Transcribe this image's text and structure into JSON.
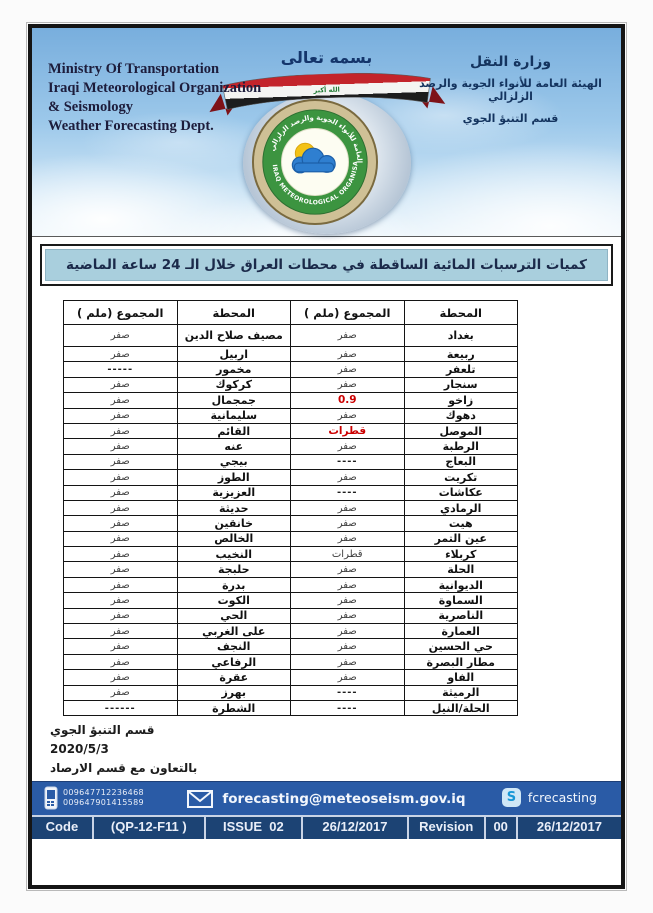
{
  "header": {
    "bismillah": "بسمه تعالى",
    "english_lines": [
      "Ministry Of Transportation",
      "Iraqi Meteorological Organization",
      "& Seismology",
      "Weather Forecasting Dept."
    ],
    "arabic_lines": [
      "وزارة النقل",
      "الهيئة العامة للأنواء الجوية والرصد الزلزالي",
      "قسم التنبؤ الجوي"
    ],
    "flag_text": "الله أكبر",
    "logo_ring_top": "الهيئة العامة للأنواء الجوية والرصد الزلزالي",
    "logo_ring_bottom": "IRAQ METEOROLOGICAL ORGANISATION & SEISMOLOGY"
  },
  "title": "كميات الترسبات المائية الساقطة في محطات العراق خلال الـ 24 ساعة الماضية",
  "table": {
    "headers": [
      "المحطة",
      "المجموع (ملم )",
      "المحطة",
      "المجموع (ملم )"
    ],
    "rows": [
      {
        "r": {
          "station": "بغداد",
          "value": "صفر"
        },
        "l": {
          "station": "مصيف صلاح الدين",
          "value": "صفر"
        }
      },
      {
        "r": {
          "station": "ربيعة",
          "value": "صفر"
        },
        "l": {
          "station": "اربيل",
          "value": "صفر"
        }
      },
      {
        "r": {
          "station": "تلعفر",
          "value": "صفر"
        },
        "l": {
          "station": "مخمور",
          "value": "-----"
        }
      },
      {
        "r": {
          "station": "سنجار",
          "value": "صفر"
        },
        "l": {
          "station": "كركوك",
          "value": "صفر"
        }
      },
      {
        "r": {
          "station": "زاخو",
          "value": "0.9",
          "highlight": true
        },
        "l": {
          "station": "جمجمال",
          "value": "صفر"
        }
      },
      {
        "r": {
          "station": "دهوك",
          "value": "صفر"
        },
        "l": {
          "station": "سليمانية",
          "value": "صفر"
        }
      },
      {
        "r": {
          "station": "الموصل",
          "value": "قطرات",
          "highlight": true
        },
        "l": {
          "station": "القائم",
          "value": "صفر"
        }
      },
      {
        "r": {
          "station": "الرطبة",
          "value": "صفر"
        },
        "l": {
          "station": "عنه",
          "value": "صفر"
        }
      },
      {
        "r": {
          "station": "البعاج",
          "value": "----"
        },
        "l": {
          "station": "بيجي",
          "value": "صفر"
        }
      },
      {
        "r": {
          "station": "تكريت",
          "value": "صفر"
        },
        "l": {
          "station": "الطوز",
          "value": "صفر"
        }
      },
      {
        "r": {
          "station": "عكاشات",
          "value": "----"
        },
        "l": {
          "station": "العزيزية",
          "value": "صفر"
        }
      },
      {
        "r": {
          "station": "الرمادي",
          "value": "صفر"
        },
        "l": {
          "station": "حديثة",
          "value": "صفر"
        }
      },
      {
        "r": {
          "station": "هيت",
          "value": "صفر"
        },
        "l": {
          "station": "خانقين",
          "value": "صفر"
        }
      },
      {
        "r": {
          "station": "عين التمر",
          "value": "صفر"
        },
        "l": {
          "station": "الخالص",
          "value": "صفر"
        }
      },
      {
        "r": {
          "station": "كربلاء",
          "value": "قطرات"
        },
        "l": {
          "station": "النخيب",
          "value": "صفر"
        }
      },
      {
        "r": {
          "station": "الحلة",
          "value": "صفر"
        },
        "l": {
          "station": "حلبجة",
          "value": "صفر"
        }
      },
      {
        "r": {
          "station": "الديوانية",
          "value": "صفر"
        },
        "l": {
          "station": "بدرة",
          "value": "صفر"
        }
      },
      {
        "r": {
          "station": "السماوة",
          "value": "صفر"
        },
        "l": {
          "station": "الكوت",
          "value": "صفر"
        }
      },
      {
        "r": {
          "station": "الناصرية",
          "value": "صفر"
        },
        "l": {
          "station": "الحي",
          "value": "صفر"
        }
      },
      {
        "r": {
          "station": "العمارة",
          "value": "صفر"
        },
        "l": {
          "station": "على الغربي",
          "value": "صفر"
        }
      },
      {
        "r": {
          "station": "حي الحسين",
          "value": "صفر"
        },
        "l": {
          "station": "النجف",
          "value": "صفر"
        }
      },
      {
        "r": {
          "station": "مطار البصرة",
          "value": "صفر"
        },
        "l": {
          "station": "الرفاعي",
          "value": "صفر"
        }
      },
      {
        "r": {
          "station": "الفاو",
          "value": "صفر"
        },
        "l": {
          "station": "عقرة",
          "value": "صفر"
        }
      },
      {
        "r": {
          "station": "الرميثة",
          "value": "----"
        },
        "l": {
          "station": "بهرز",
          "value": "صفر"
        }
      },
      {
        "r": {
          "station": "الحلة/النيل",
          "value": "----"
        },
        "l": {
          "station": "الشطرة",
          "value": "------"
        }
      }
    ]
  },
  "footer": {
    "lines": [
      "قسم التنبؤ الجوي",
      "2020/5/3",
      "بالتعاون مع قسم الارصاد"
    ]
  },
  "contact": {
    "phones": [
      "009647712236468",
      "009647901415589"
    ],
    "email": "forecasting@meteoseism.gov.iq",
    "skype": "fcrecasting"
  },
  "codebar": {
    "cells": [
      "Code",
      "(QP-12-F11 )",
      "ISSUE  02",
      "26/12/2017",
      "Revision",
      "00",
      "26/12/2017"
    ]
  },
  "colors": {
    "highlight_value": "#cc0000",
    "title_background": "#a9cfdd",
    "contact_bar": "#2a5ba6",
    "code_bar": "#1c4374"
  }
}
